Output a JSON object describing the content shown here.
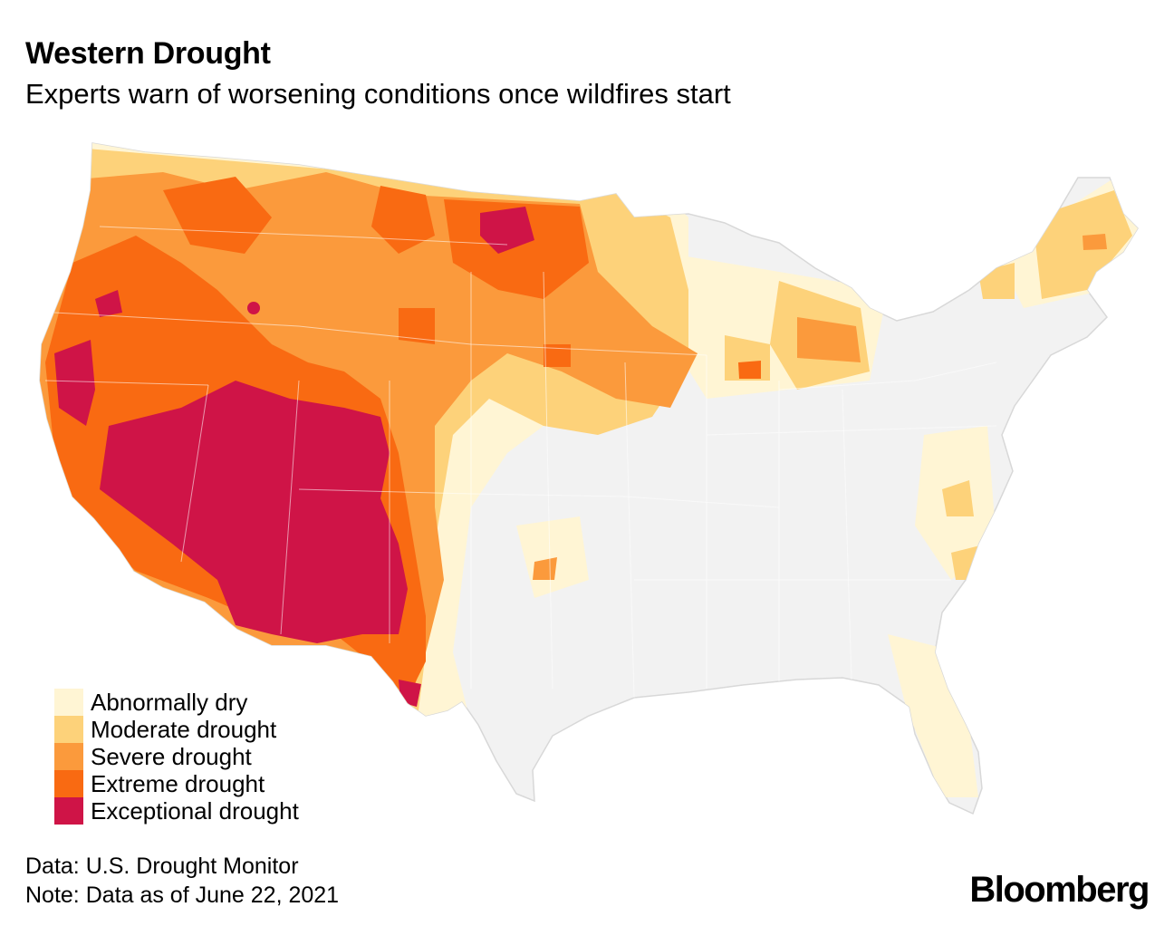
{
  "header": {
    "title": "Western Drought",
    "subtitle": "Experts warn of worsening conditions once wildfires start"
  },
  "map": {
    "region": "Contiguous United States",
    "base_color": "#f2f2f2",
    "border_color": "#d8d8d8"
  },
  "legend": {
    "items": [
      {
        "label": "Abnormally dry",
        "color": "#fff5d4"
      },
      {
        "label": "Moderate drought",
        "color": "#fdd27a"
      },
      {
        "label": "Severe drought",
        "color": "#fb9a3c"
      },
      {
        "label": "Extreme drought",
        "color": "#f96a12"
      },
      {
        "label": "Exceptional drought",
        "color": "#cf1447"
      }
    ]
  },
  "footer": {
    "source": "Data: U.S. Drought Monitor",
    "note": "Note: Data as of June 22, 2021"
  },
  "brand": {
    "logo_text": "Bloomberg"
  }
}
